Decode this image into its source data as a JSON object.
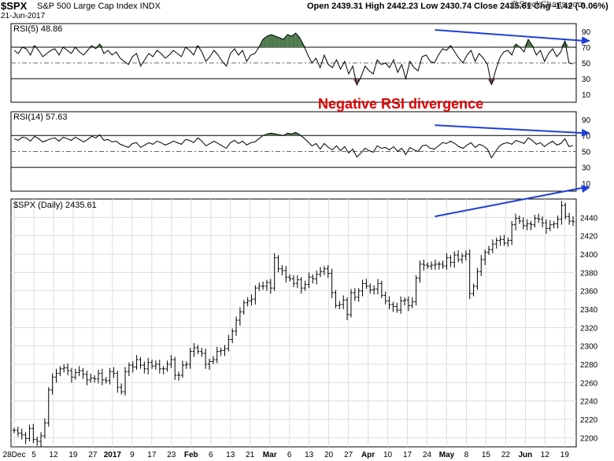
{
  "header": {
    "symbol": "$SPX",
    "description": "S&P 500 Large Cap Index INDX",
    "ohlc": "Open 2439.31  High 2442.23  Low 2430.74  Close 2435.61  Chg -1.42 (-0.06%)",
    "date": "21-Jun-2017",
    "watermark": "@StockCharts.com",
    "change_arrow_color": "#8b0000"
  },
  "annotation": {
    "text": "Negative RSI divergence",
    "color": "#e00000"
  },
  "colors": {
    "arrow": "#1f3fd6",
    "fill": "#4f7a4f",
    "fill_low": "#8a5a5a",
    "line": "#000000",
    "grid": "#dddddd"
  },
  "chart_data": [
    {
      "type": "line",
      "panel": "RSI(5)",
      "title": "RSI(5) 48.86",
      "ylim": [
        0,
        100
      ],
      "yticks": [
        10,
        30,
        50,
        70,
        90
      ],
      "overbought": 70,
      "oversold": 30,
      "midline": 50,
      "series": [
        {
          "name": "RSI(5)",
          "values": [
            66,
            62,
            70,
            68,
            60,
            72,
            66,
            58,
            62,
            66,
            68,
            60,
            70,
            66,
            62,
            70,
            64,
            60,
            66,
            72,
            68,
            74,
            62,
            66,
            60,
            64,
            56,
            52,
            48,
            58,
            62,
            46,
            54,
            62,
            58,
            66,
            62,
            56,
            60,
            66,
            62,
            58,
            70,
            66,
            60,
            72,
            64,
            52,
            58,
            66,
            60,
            52,
            46,
            62,
            68,
            60,
            66,
            52,
            60,
            62,
            70,
            80,
            84,
            86,
            84,
            82,
            80,
            86,
            84,
            88,
            82,
            72,
            60,
            50,
            56,
            44,
            60,
            48,
            44,
            54,
            42,
            52,
            36,
            46,
            22,
            32,
            46,
            40,
            36,
            54,
            48,
            50,
            44,
            54,
            38,
            48,
            30,
            52,
            44,
            40,
            58,
            60,
            52,
            50,
            60,
            68,
            66,
            72,
            64,
            56,
            50,
            60,
            66,
            52,
            62,
            56,
            48,
            22,
            40,
            56,
            64,
            66,
            60,
            74,
            70,
            64,
            80,
            72,
            60,
            66,
            52,
            62,
            68,
            58,
            64,
            78,
            50,
            48.86
          ]
        }
      ],
      "divergence_arrow": [
        [
          0.75,
          92
        ],
        [
          1.0,
          78
        ]
      ]
    },
    {
      "type": "line",
      "panel": "RSI(14)",
      "title": "RSI(14) 57.63",
      "ylim": [
        0,
        100
      ],
      "yticks": [
        10,
        30,
        50,
        70,
        90
      ],
      "overbought": 70,
      "oversold": 30,
      "midline": 50,
      "series": [
        {
          "name": "RSI(14)",
          "values": [
            66,
            64,
            68,
            67,
            63,
            69,
            66,
            62,
            64,
            66,
            67,
            63,
            68,
            66,
            64,
            68,
            65,
            62,
            65,
            69,
            67,
            71,
            64,
            65,
            62,
            63,
            59,
            57,
            55,
            60,
            61,
            55,
            58,
            61,
            59,
            63,
            61,
            58,
            60,
            63,
            61,
            59,
            65,
            64,
            61,
            67,
            63,
            57,
            60,
            63,
            60,
            57,
            54,
            61,
            64,
            60,
            63,
            58,
            61,
            62,
            66,
            70,
            72,
            73,
            72,
            71,
            70,
            73,
            72,
            74,
            71,
            67,
            62,
            57,
            60,
            53,
            60,
            55,
            52,
            57,
            51,
            56,
            48,
            53,
            43,
            48,
            54,
            51,
            49,
            57,
            54,
            55,
            52,
            56,
            50,
            54,
            46,
            55,
            52,
            50,
            57,
            58,
            54,
            53,
            57,
            61,
            60,
            63,
            60,
            56,
            54,
            58,
            61,
            55,
            59,
            57,
            53,
            42,
            50,
            57,
            60,
            61,
            59,
            64,
            62,
            60,
            67,
            64,
            59,
            61,
            56,
            60,
            63,
            58,
            60,
            66,
            56,
            57.63
          ]
        }
      ],
      "divergence_arrow": [
        [
          0.75,
          83
        ],
        [
          1.0,
          73
        ]
      ]
    },
    {
      "type": "ohlc",
      "panel": "Price",
      "title": "$SPX (Daily) 2435.61",
      "ylim": [
        2190,
        2460
      ],
      "yticks": [
        2200,
        2220,
        2240,
        2260,
        2280,
        2300,
        2320,
        2340,
        2360,
        2380,
        2400,
        2420,
        2440
      ],
      "x_ticks": [
        "28Dec",
        "5",
        "12",
        "19",
        "27",
        "2017",
        "9",
        "17",
        "23",
        "Feb",
        "6",
        "13",
        "21",
        "Mar",
        "6",
        "13",
        "20",
        "27",
        "Apr",
        "10",
        "17",
        "24",
        "May",
        "8",
        "15",
        "22",
        "Jun",
        "12",
        "19"
      ],
      "series": [
        {
          "name": "$SPX",
          "values": [
            2208,
            2205,
            2203,
            2199,
            2210,
            2198,
            2196,
            2202,
            2216,
            2252,
            2266,
            2270,
            2275,
            2276,
            2273,
            2266,
            2271,
            2273,
            2269,
            2263,
            2265,
            2264,
            2270,
            2263,
            2262,
            2272,
            2270,
            2255,
            2250,
            2272,
            2279,
            2277,
            2285,
            2279,
            2275,
            2282,
            2278,
            2280,
            2275,
            2275,
            2280,
            2285,
            2268,
            2268,
            2279,
            2280,
            2294,
            2298,
            2294,
            2292,
            2280,
            2283,
            2285,
            2294,
            2295,
            2297,
            2307,
            2316,
            2328,
            2337,
            2347,
            2349,
            2351,
            2363,
            2365,
            2365,
            2369,
            2363,
            2396,
            2384,
            2382,
            2375,
            2373,
            2368,
            2372,
            2363,
            2367,
            2375,
            2373,
            2378,
            2381,
            2384,
            2379,
            2358,
            2344,
            2345,
            2350,
            2334,
            2358,
            2353,
            2360,
            2368,
            2365,
            2361,
            2362,
            2368,
            2355,
            2349,
            2345,
            2343,
            2339,
            2349,
            2350,
            2344,
            2348,
            2374,
            2389,
            2388,
            2387,
            2388,
            2389,
            2389,
            2387,
            2396,
            2391,
            2399,
            2394,
            2398,
            2400,
            2357,
            2365,
            2381,
            2394,
            2402,
            2405,
            2411,
            2415,
            2416,
            2412,
            2415,
            2432,
            2439,
            2436,
            2431,
            2433,
            2432,
            2439,
            2438,
            2434,
            2428,
            2432,
            2433,
            2438,
            2453,
            2441,
            2436,
            2435.61
          ]
        }
      ],
      "divergence_arrow": [
        [
          0.75,
          2441
        ],
        [
          1.0,
          2455
        ]
      ]
    }
  ]
}
